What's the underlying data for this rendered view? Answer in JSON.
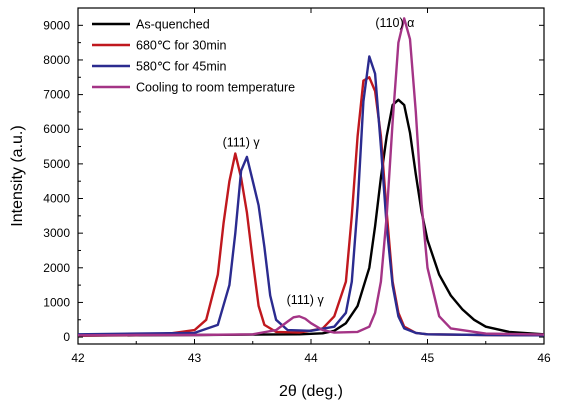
{
  "chart_data": {
    "type": "line",
    "xlabel": "2θ (deg.)",
    "ylabel": "Intensity (a.u.)",
    "xlim": [
      42,
      46
    ],
    "ylim": [
      -200,
      9500
    ],
    "xticks": [
      42,
      43,
      44,
      45,
      46
    ],
    "yticks": [
      0,
      1000,
      2000,
      3000,
      4000,
      5000,
      6000,
      7000,
      8000,
      9000
    ],
    "grid": false,
    "legend": "top-left",
    "annotations": [
      {
        "text": "(111) γ",
        "x": 43.4,
        "y": 5500
      },
      {
        "text": "(111) γ",
        "x": 43.95,
        "y": 950
      },
      {
        "text": "(110) α",
        "x": 44.72,
        "y": 8950
      }
    ],
    "series": [
      {
        "name": "As-quenched",
        "color": "#000000",
        "x": [
          42.0,
          42.5,
          43.0,
          43.5,
          43.9,
          44.1,
          44.2,
          44.3,
          44.4,
          44.5,
          44.55,
          44.6,
          44.65,
          44.7,
          44.75,
          44.8,
          44.85,
          44.9,
          44.95,
          45.0,
          45.1,
          45.2,
          45.3,
          45.4,
          45.5,
          45.7,
          46.0
        ],
        "y": [
          40,
          50,
          60,
          70,
          80,
          110,
          180,
          400,
          900,
          2000,
          3200,
          4600,
          5800,
          6700,
          6850,
          6700,
          5900,
          4700,
          3600,
          2800,
          1800,
          1200,
          800,
          500,
          300,
          150,
          80
        ]
      },
      {
        "name": "680℃ for 30min",
        "color": "#c0181e",
        "x": [
          42.0,
          42.5,
          42.8,
          43.0,
          43.1,
          43.2,
          43.25,
          43.3,
          43.35,
          43.4,
          43.45,
          43.5,
          43.55,
          43.6,
          43.7,
          43.9,
          44.1,
          44.2,
          44.3,
          44.35,
          44.4,
          44.45,
          44.5,
          44.55,
          44.6,
          44.65,
          44.7,
          44.75,
          44.8,
          44.9,
          45.0,
          45.5,
          46.0
        ],
        "y": [
          40,
          60,
          110,
          200,
          500,
          1800,
          3300,
          4500,
          5300,
          4600,
          3600,
          2200,
          900,
          350,
          150,
          130,
          250,
          600,
          1600,
          3500,
          5800,
          7400,
          7500,
          7100,
          5800,
          3600,
          1600,
          700,
          300,
          120,
          80,
          60,
          50
        ]
      },
      {
        "name": "580℃ for 45min",
        "color": "#2b2b8f",
        "x": [
          42.0,
          42.5,
          43.0,
          43.2,
          43.3,
          43.35,
          43.4,
          43.45,
          43.5,
          43.55,
          43.6,
          43.65,
          43.7,
          43.8,
          44.0,
          44.2,
          44.3,
          44.35,
          44.4,
          44.45,
          44.5,
          44.55,
          44.6,
          44.65,
          44.7,
          44.75,
          44.8,
          44.9,
          45.0,
          45.5,
          46.0
        ],
        "y": [
          80,
          100,
          120,
          350,
          1500,
          3000,
          4800,
          5200,
          4500,
          3800,
          2600,
          1200,
          500,
          200,
          180,
          300,
          700,
          1600,
          3800,
          6800,
          8100,
          7600,
          5500,
          3200,
          1500,
          600,
          250,
          120,
          80,
          60,
          50
        ]
      },
      {
        "name": "Cooling to room temperature",
        "color": "#a43486",
        "x": [
          42.0,
          42.5,
          43.0,
          43.5,
          43.7,
          43.8,
          43.85,
          43.9,
          43.95,
          44.0,
          44.1,
          44.2,
          44.4,
          44.5,
          44.55,
          44.6,
          44.65,
          44.7,
          44.75,
          44.8,
          44.85,
          44.9,
          44.95,
          45.0,
          45.1,
          45.2,
          45.5,
          46.0
        ],
        "y": [
          50,
          60,
          60,
          80,
          200,
          450,
          570,
          600,
          530,
          400,
          200,
          130,
          150,
          300,
          700,
          1600,
          3500,
          6200,
          8500,
          9200,
          8600,
          6500,
          3800,
          2000,
          600,
          250,
          100,
          70
        ]
      }
    ]
  }
}
